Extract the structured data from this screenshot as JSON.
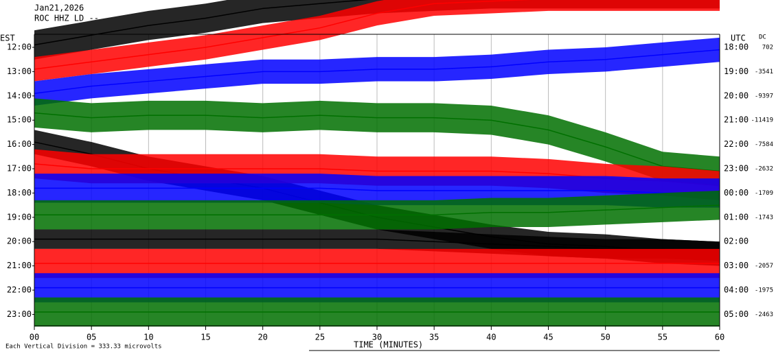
{
  "chart_data": {
    "type": "helicorder",
    "title": [
      "Jan21,2026",
      "ROC HHZ LD --"
    ],
    "left_axis_label": "EST",
    "right_axis_label": "UTC",
    "dc_label": "DC",
    "xlabel": "TIME (MINUTES)",
    "footnote": "Each Vertical Division =  333.33 microvolts",
    "rows_left": [
      "12:00",
      "13:00",
      "14:00",
      "15:00",
      "16:00",
      "17:00",
      "18:00",
      "19:00",
      "20:00",
      "21:00",
      "22:00",
      "23:00"
    ],
    "rows_right": [
      "18:00",
      "19:00",
      "20:00",
      "21:00",
      "22:00",
      "23:00",
      "00:00",
      "01:00",
      "02:00",
      "03:00",
      "04:00",
      "05:00"
    ],
    "dc": [
      702,
      -3541,
      -9397,
      -11419,
      -7584,
      -2632,
      -1709,
      -1743,
      null,
      -2057,
      -1975,
      -2463
    ],
    "xlim": [
      0,
      60
    ],
    "xticks": [
      {
        "value": 0,
        "label": "00"
      },
      {
        "value": 5,
        "label": "05"
      },
      10,
      15,
      20,
      25,
      30,
      35,
      40,
      45,
      50,
      55,
      60
    ],
    "x": [
      0,
      5,
      10,
      15,
      20,
      25,
      30,
      35,
      40,
      45,
      50,
      55,
      60
    ],
    "series": [
      {
        "color": "#000000",
        "amplitude": 0.6,
        "values": [
          0.1,
          0.5,
          0.9,
          1.2,
          1.6,
          1.8,
          2.0,
          2.1,
          2.2,
          2.2,
          2.2,
          2.2,
          2.2
        ]
      },
      {
        "color": "#ff0000",
        "amplitude": 0.5,
        "values": [
          0.1,
          0.4,
          0.7,
          1.0,
          1.4,
          1.8,
          2.4,
          2.8,
          2.9,
          3.0,
          3.0,
          3.0,
          3.0
        ]
      },
      {
        "color": "#0000ff",
        "amplitude": 0.5,
        "values": [
          0.1,
          0.4,
          0.6,
          0.8,
          1.0,
          1.0,
          1.1,
          1.1,
          1.2,
          1.4,
          1.5,
          1.7,
          1.9
        ]
      },
      {
        "color": "#007000",
        "amplitude": 0.6,
        "values": [
          0.3,
          0.1,
          0.2,
          0.2,
          0.1,
          0.2,
          0.1,
          0.1,
          0,
          -0.4,
          -1.1,
          -1.9,
          -2.1
        ]
      },
      {
        "color": "#000000",
        "amplitude": 0.5,
        "values": [
          0.1,
          -0.4,
          -1.0,
          -1.4,
          -1.8,
          -2.4,
          -3.0,
          -3.4,
          -3.8,
          -4.1,
          -4.2,
          -4.4,
          -4.5
        ]
      },
      {
        "color": "#ff0000",
        "amplitude": 0.6,
        "values": [
          0.2,
          0,
          0,
          0,
          0,
          0,
          -0.1,
          -0.1,
          -0.1,
          -0.2,
          -0.4,
          -0.5,
          -0.7
        ]
      },
      {
        "color": "#0000ff",
        "amplitude": 0.6,
        "values": [
          0.2,
          0.2,
          0.2,
          0.2,
          0.2,
          0.2,
          0.1,
          0.1,
          0.1,
          0.1,
          0.1,
          0,
          0
        ]
      },
      {
        "color": "#007000",
        "amplitude": 0.6,
        "values": [
          0.1,
          0.1,
          0.1,
          0.1,
          0.1,
          0.1,
          0.1,
          0.1,
          0.2,
          0.2,
          0.3,
          0.4,
          0.5
        ]
      },
      {
        "color": "#000000",
        "amplitude": 0.4,
        "values": [
          0.1,
          0.1,
          0.1,
          0.1,
          0.1,
          0.1,
          0.1,
          0,
          -0.1,
          -0.2,
          -0.3,
          -0.3,
          -0.4
        ]
      },
      {
        "color": "#ff0000",
        "amplitude": 0.6,
        "values": [
          0.1,
          0.1,
          0.1,
          0.1,
          0.1,
          0.1,
          0.1,
          0.1,
          0.1,
          0.1,
          0.1,
          0.1,
          0.1
        ]
      },
      {
        "color": "#0000ff",
        "amplitude": 0.6,
        "values": [
          0.1,
          0.1,
          0.1,
          0.1,
          0.1,
          0.1,
          0.1,
          0.1,
          0.1,
          0.1,
          0.1,
          0.1,
          0.1
        ]
      },
      {
        "color": "#007000",
        "amplitude": 0.6,
        "values": [
          0.1,
          0.1,
          0.1,
          0.1,
          0.1,
          0.1,
          0.1,
          0.1,
          0.1,
          0.1,
          0.1,
          0.1,
          0.1
        ]
      }
    ]
  }
}
